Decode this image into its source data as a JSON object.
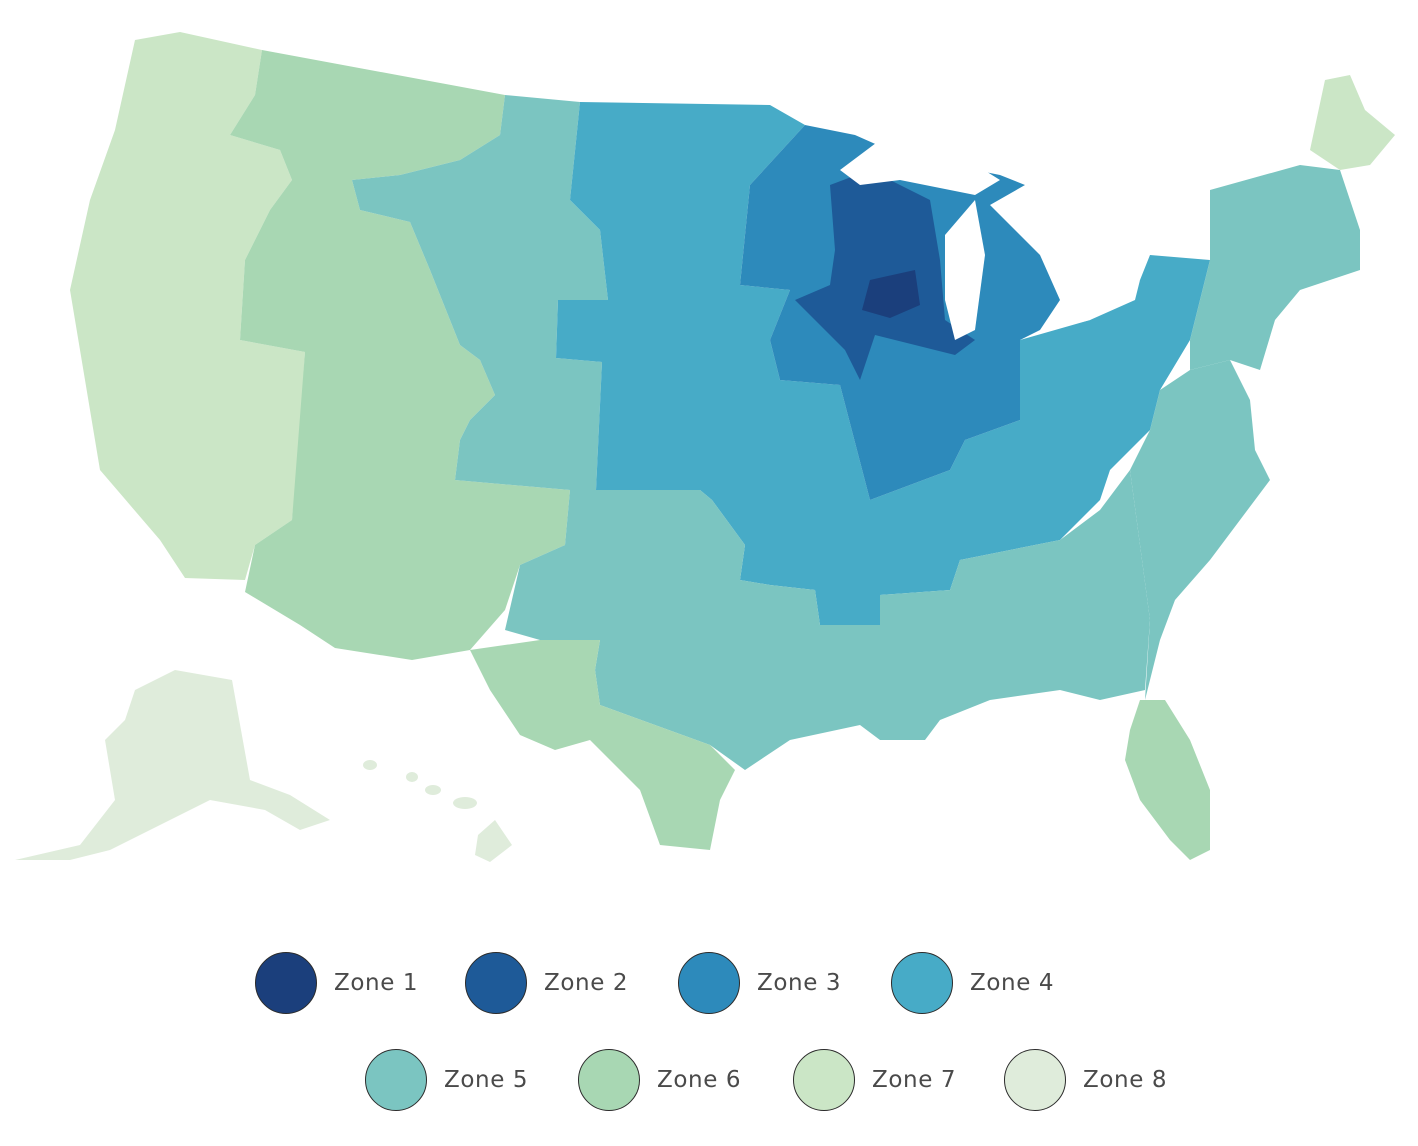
{
  "zones": [
    {
      "id": "zone-1",
      "label": "Zone 1",
      "color": "#1b3f7c"
    },
    {
      "id": "zone-2",
      "label": "Zone 2",
      "color": "#1e5a98"
    },
    {
      "id": "zone-3",
      "label": "Zone 3",
      "color": "#2d8abb"
    },
    {
      "id": "zone-4",
      "label": "Zone 4",
      "color": "#47abc7"
    },
    {
      "id": "zone-5",
      "label": "Zone 5",
      "color": "#7bc5c1"
    },
    {
      "id": "zone-6",
      "label": "Zone 6",
      "color": "#a8d7b3"
    },
    {
      "id": "zone-7",
      "label": "Zone 7",
      "color": "#cbe6c6"
    },
    {
      "id": "zone-8",
      "label": "Zone 8",
      "color": "#dfecdb"
    }
  ],
  "regions": [
    {
      "name": "pacific-coast",
      "zone": "zone-7"
    },
    {
      "name": "mountain-west",
      "zone": "zone-6"
    },
    {
      "name": "northern-plains-west",
      "zone": "zone-5"
    },
    {
      "name": "plains-and-ohio-valley",
      "zone": "zone-4"
    },
    {
      "name": "upper-midwest",
      "zone": "zone-3"
    },
    {
      "name": "northwoods",
      "zone": "zone-2"
    },
    {
      "name": "wisconsin-core",
      "zone": "zone-1"
    },
    {
      "name": "south-central",
      "zone": "zone-5"
    },
    {
      "name": "southeast",
      "zone": "zone-5"
    },
    {
      "name": "northeast",
      "zone": "zone-5"
    },
    {
      "name": "texas",
      "zone": "zone-6"
    },
    {
      "name": "florida",
      "zone": "zone-6"
    },
    {
      "name": "maine",
      "zone": "zone-7"
    },
    {
      "name": "alaska",
      "zone": "zone-8"
    },
    {
      "name": "hawaii",
      "zone": "zone-8"
    }
  ]
}
